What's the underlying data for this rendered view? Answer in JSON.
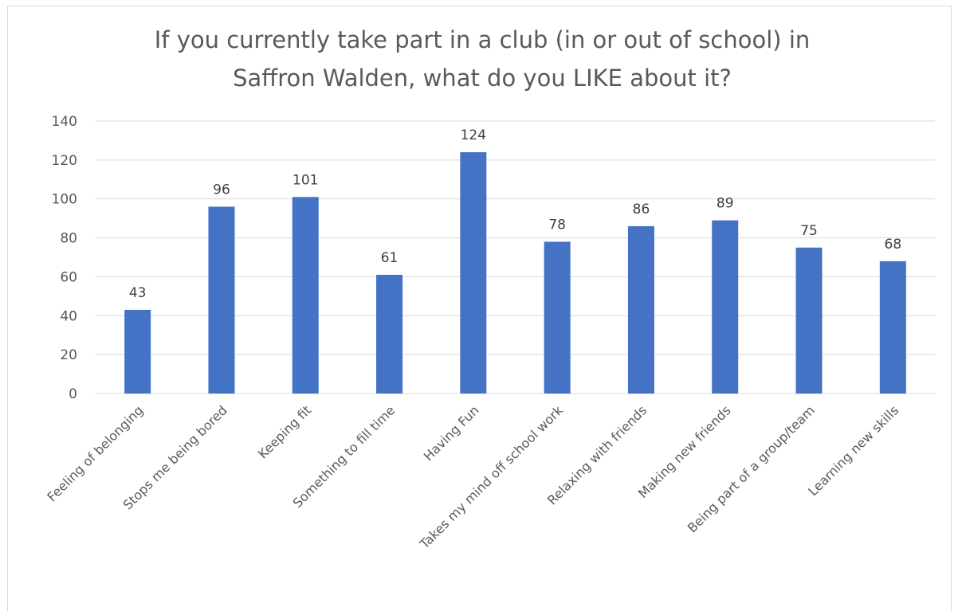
{
  "chart_data": {
    "type": "bar",
    "title_lines": [
      "If you currently take part in a club (in or out of school) in",
      "Saffron Walden, what do you LIKE about it?"
    ],
    "categories": [
      "Feeling of belonging",
      "Stops me being bored",
      "Keeping fit",
      "Something to fill time",
      "Having Fun",
      "Takes my mind off school work",
      "Relaxing with friends",
      "Making new friends",
      "Being part of a group/team",
      "Learning new skills"
    ],
    "values": [
      43,
      96,
      101,
      61,
      124,
      78,
      86,
      89,
      75,
      68
    ],
    "data_labels": [
      "43",
      "96",
      "101",
      "61",
      "124",
      "78",
      "86",
      "89",
      "75",
      "68"
    ],
    "ylim": [
      0,
      140
    ],
    "yticks": [
      "0",
      "20",
      "40",
      "60",
      "80",
      "100",
      "120",
      "140"
    ],
    "grid": true,
    "bar_color": "#4472c4",
    "gridline_color": "#d9d9d9"
  }
}
